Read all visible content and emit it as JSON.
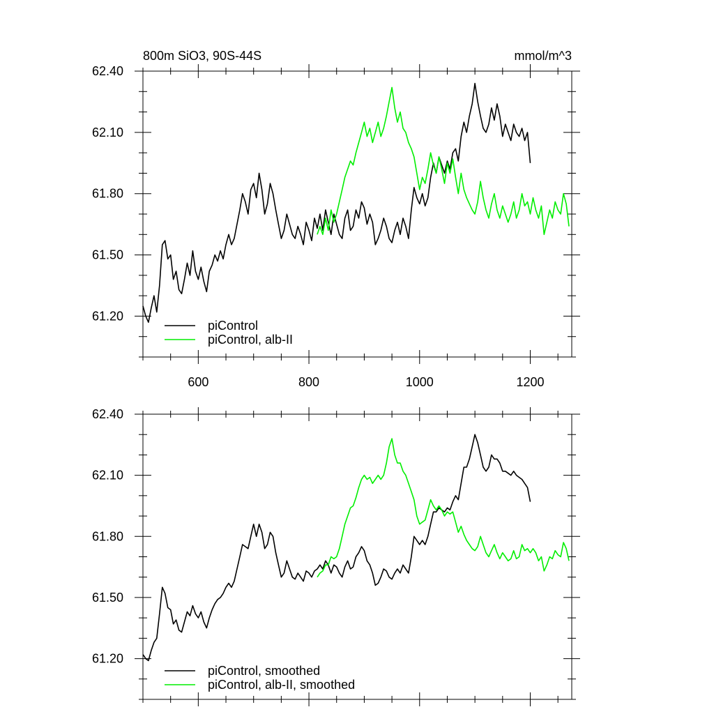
{
  "header": {
    "title": "800m SiO3, 90S-44S",
    "units": "mmol/m^3"
  },
  "colors": {
    "black": "#000000",
    "green": "#00ee00"
  },
  "chart_data": [
    {
      "type": "line",
      "title": "800m SiO3, 90S-44S",
      "unit_label": "mmol/m^3",
      "xlabel": "",
      "ylabel": "",
      "xlim": [
        500,
        1275
      ],
      "ylim": [
        61.0,
        62.4
      ],
      "xticks": [
        600,
        800,
        1000,
        1200
      ],
      "xticklabels": [
        "600",
        "800",
        "1000",
        "1200"
      ],
      "yticks": [
        61.2,
        61.5,
        61.8,
        62.1,
        62.4
      ],
      "yticklabels": [
        "61.20",
        "61.50",
        "61.80",
        "62.10",
        "62.40"
      ],
      "legend_location": "bottom-left",
      "series": [
        {
          "name": "piControl",
          "color": "#000000",
          "x": [
            500,
            505,
            510,
            515,
            520,
            525,
            530,
            535,
            540,
            545,
            550,
            555,
            560,
            565,
            570,
            575,
            580,
            585,
            590,
            595,
            600,
            605,
            610,
            615,
            620,
            625,
            630,
            635,
            640,
            645,
            650,
            655,
            660,
            665,
            670,
            675,
            680,
            685,
            690,
            695,
            700,
            705,
            710,
            715,
            720,
            725,
            730,
            735,
            740,
            745,
            750,
            755,
            760,
            765,
            770,
            775,
            780,
            785,
            790,
            795,
            800,
            805,
            810,
            815,
            820,
            825,
            830,
            835,
            840,
            845,
            850,
            855,
            860,
            865,
            870,
            875,
            880,
            885,
            890,
            895,
            900,
            905,
            910,
            915,
            920,
            925,
            930,
            935,
            940,
            945,
            950,
            955,
            960,
            965,
            970,
            975,
            980,
            985,
            990,
            995,
            1000,
            1005,
            1010,
            1015,
            1020,
            1025,
            1030,
            1035,
            1040,
            1045,
            1050,
            1055,
            1060,
            1065,
            1070,
            1075,
            1080,
            1085,
            1090,
            1095,
            1100,
            1105,
            1110,
            1115,
            1120,
            1125,
            1130,
            1135,
            1140,
            1145,
            1150,
            1155,
            1160,
            1165,
            1170,
            1175,
            1180,
            1185,
            1190,
            1195,
            1200
          ],
          "values": [
            61.25,
            61.2,
            61.17,
            61.24,
            61.3,
            61.22,
            61.35,
            61.55,
            61.57,
            61.48,
            61.5,
            61.38,
            61.42,
            61.33,
            61.31,
            61.38,
            61.46,
            61.4,
            61.52,
            61.42,
            61.38,
            61.44,
            61.37,
            61.32,
            61.42,
            61.45,
            61.5,
            61.47,
            61.52,
            61.48,
            61.55,
            61.6,
            61.55,
            61.58,
            61.65,
            61.72,
            61.8,
            61.76,
            61.7,
            61.82,
            61.85,
            61.78,
            61.9,
            61.82,
            61.7,
            61.75,
            61.85,
            61.8,
            61.72,
            61.65,
            61.58,
            61.62,
            61.7,
            61.65,
            61.6,
            61.58,
            61.64,
            61.6,
            61.55,
            61.66,
            61.62,
            61.57,
            61.68,
            61.63,
            61.7,
            61.62,
            61.72,
            61.66,
            61.6,
            61.7,
            61.65,
            61.6,
            61.58,
            61.68,
            61.72,
            61.62,
            61.64,
            61.72,
            61.68,
            61.76,
            61.73,
            61.65,
            61.7,
            61.66,
            61.55,
            61.58,
            61.62,
            61.68,
            61.64,
            61.58,
            61.56,
            61.62,
            61.66,
            61.6,
            61.68,
            61.64,
            61.58,
            61.72,
            61.83,
            61.78,
            61.75,
            61.8,
            61.74,
            61.78,
            61.88,
            61.95,
            61.9,
            61.98,
            61.94,
            61.9,
            61.96,
            61.92,
            62.0,
            62.02,
            61.96,
            62.08,
            62.15,
            62.1,
            62.18,
            62.24,
            62.34,
            62.25,
            62.18,
            62.12,
            62.1,
            62.14,
            62.22,
            62.16,
            62.24,
            62.18,
            62.08,
            62.14,
            62.1,
            62.06,
            62.14,
            62.1,
            62.08,
            62.12,
            62.06,
            62.1,
            61.95
          ]
        },
        {
          "name": "piControl, alb-II",
          "color": "#00ee00",
          "x": [
            815,
            820,
            825,
            830,
            835,
            840,
            845,
            850,
            855,
            860,
            865,
            870,
            875,
            880,
            885,
            890,
            895,
            900,
            905,
            910,
            915,
            920,
            925,
            930,
            935,
            940,
            945,
            950,
            955,
            960,
            965,
            970,
            975,
            980,
            985,
            990,
            995,
            1000,
            1005,
            1010,
            1015,
            1020,
            1025,
            1030,
            1035,
            1040,
            1045,
            1050,
            1055,
            1060,
            1065,
            1070,
            1075,
            1080,
            1085,
            1090,
            1095,
            1100,
            1105,
            1110,
            1115,
            1120,
            1125,
            1130,
            1135,
            1140,
            1145,
            1150,
            1155,
            1160,
            1165,
            1170,
            1175,
            1180,
            1185,
            1190,
            1195,
            1200,
            1205,
            1210,
            1215,
            1220,
            1225,
            1230,
            1235,
            1240,
            1245,
            1250,
            1255,
            1260,
            1265,
            1270
          ],
          "values": [
            61.6,
            61.64,
            61.6,
            61.68,
            61.62,
            61.72,
            61.66,
            61.7,
            61.76,
            61.82,
            61.88,
            61.92,
            61.96,
            61.94,
            62.0,
            62.05,
            62.1,
            62.15,
            62.08,
            62.12,
            62.05,
            62.1,
            62.15,
            62.08,
            62.12,
            62.18,
            62.25,
            62.32,
            62.22,
            62.15,
            62.2,
            62.12,
            62.1,
            62.05,
            62.02,
            61.98,
            61.9,
            61.82,
            61.88,
            61.85,
            61.92,
            62.0,
            61.94,
            61.9,
            61.98,
            61.92,
            61.85,
            61.95,
            61.9,
            61.97,
            61.88,
            61.8,
            61.9,
            61.82,
            61.78,
            61.75,
            61.72,
            61.7,
            61.76,
            61.86,
            61.78,
            61.72,
            61.68,
            61.75,
            61.8,
            61.72,
            61.68,
            61.74,
            61.7,
            61.66,
            61.7,
            61.76,
            61.68,
            61.72,
            61.8,
            61.74,
            61.76,
            61.7,
            61.78,
            61.72,
            61.68,
            61.74,
            61.6,
            61.66,
            61.72,
            61.68,
            61.76,
            61.72,
            61.7,
            61.8,
            61.75,
            61.64
          ]
        }
      ]
    },
    {
      "type": "line",
      "title": "",
      "xlabel": "",
      "ylabel": "",
      "xlim": [
        500,
        1275
      ],
      "ylim": [
        61.0,
        62.4
      ],
      "xticks": [
        600,
        800,
        1000,
        1200
      ],
      "xticklabels": [],
      "yticks": [
        61.2,
        61.5,
        61.8,
        62.1,
        62.4
      ],
      "yticklabels": [
        "61.20",
        "61.50",
        "61.80",
        "62.10",
        "62.40"
      ],
      "legend_location": "bottom-left",
      "series": [
        {
          "name": "piControl, smoothed",
          "color": "#000000",
          "x": [
            500,
            505,
            510,
            515,
            520,
            525,
            530,
            535,
            540,
            545,
            550,
            555,
            560,
            565,
            570,
            575,
            580,
            585,
            590,
            595,
            600,
            605,
            610,
            615,
            620,
            625,
            630,
            635,
            640,
            645,
            650,
            655,
            660,
            665,
            670,
            675,
            680,
            685,
            690,
            695,
            700,
            705,
            710,
            715,
            720,
            725,
            730,
            735,
            740,
            745,
            750,
            755,
            760,
            765,
            770,
            775,
            780,
            785,
            790,
            795,
            800,
            805,
            810,
            815,
            820,
            825,
            830,
            835,
            840,
            845,
            850,
            855,
            860,
            865,
            870,
            875,
            880,
            885,
            890,
            895,
            900,
            905,
            910,
            915,
            920,
            925,
            930,
            935,
            940,
            945,
            950,
            955,
            960,
            965,
            970,
            975,
            980,
            985,
            990,
            995,
            1000,
            1005,
            1010,
            1015,
            1020,
            1025,
            1030,
            1035,
            1040,
            1045,
            1050,
            1055,
            1060,
            1065,
            1070,
            1075,
            1080,
            1085,
            1090,
            1095,
            1100,
            1105,
            1110,
            1115,
            1120,
            1125,
            1130,
            1135,
            1140,
            1145,
            1150,
            1155,
            1160,
            1165,
            1170,
            1175,
            1180,
            1185,
            1190,
            1195,
            1200
          ],
          "values": [
            61.22,
            61.2,
            61.19,
            61.24,
            61.28,
            61.3,
            61.42,
            61.55,
            61.52,
            61.45,
            61.44,
            61.37,
            61.39,
            61.34,
            61.33,
            61.38,
            61.43,
            61.41,
            61.46,
            61.42,
            61.4,
            61.43,
            61.38,
            61.35,
            61.4,
            61.44,
            61.47,
            61.49,
            61.5,
            61.52,
            61.55,
            61.57,
            61.55,
            61.58,
            61.64,
            61.7,
            61.76,
            61.75,
            61.74,
            61.8,
            61.86,
            61.8,
            61.86,
            61.82,
            61.74,
            61.76,
            61.82,
            61.8,
            61.72,
            61.66,
            61.6,
            61.62,
            61.68,
            61.64,
            61.6,
            61.59,
            61.62,
            61.6,
            61.58,
            61.63,
            61.62,
            61.6,
            61.63,
            61.64,
            61.66,
            61.64,
            61.68,
            61.66,
            61.62,
            61.66,
            61.65,
            61.62,
            61.6,
            61.65,
            61.68,
            61.64,
            61.65,
            61.7,
            61.72,
            61.75,
            61.73,
            61.68,
            61.66,
            61.62,
            61.56,
            61.57,
            61.6,
            61.64,
            61.63,
            61.6,
            61.59,
            61.62,
            61.64,
            61.62,
            61.66,
            61.64,
            61.62,
            61.7,
            61.8,
            61.78,
            61.76,
            61.78,
            61.76,
            61.8,
            61.86,
            61.92,
            61.92,
            61.94,
            61.93,
            61.92,
            61.94,
            61.93,
            61.97,
            62.0,
            61.98,
            62.06,
            62.14,
            62.14,
            62.18,
            62.24,
            62.3,
            62.26,
            62.2,
            62.14,
            62.12,
            62.14,
            62.2,
            62.18,
            62.18,
            62.16,
            62.12,
            62.12,
            62.11,
            62.1,
            62.12,
            62.1,
            62.09,
            62.08,
            62.06,
            62.04,
            61.97
          ]
        },
        {
          "name": "piControl, alb-II, smoothed",
          "color": "#00ee00",
          "x": [
            815,
            820,
            825,
            830,
            835,
            840,
            845,
            850,
            855,
            860,
            865,
            870,
            875,
            880,
            885,
            890,
            895,
            900,
            905,
            910,
            915,
            920,
            925,
            930,
            935,
            940,
            945,
            950,
            955,
            960,
            965,
            970,
            975,
            980,
            985,
            990,
            995,
            1000,
            1005,
            1010,
            1015,
            1020,
            1025,
            1030,
            1035,
            1040,
            1045,
            1050,
            1055,
            1060,
            1065,
            1070,
            1075,
            1080,
            1085,
            1090,
            1095,
            1100,
            1105,
            1110,
            1115,
            1120,
            1125,
            1130,
            1135,
            1140,
            1145,
            1150,
            1155,
            1160,
            1165,
            1170,
            1175,
            1180,
            1185,
            1190,
            1195,
            1200,
            1205,
            1210,
            1215,
            1220,
            1225,
            1230,
            1235,
            1240,
            1245,
            1250,
            1255,
            1260,
            1265,
            1270
          ],
          "values": [
            61.6,
            61.62,
            61.63,
            61.66,
            61.66,
            61.7,
            61.69,
            61.7,
            61.74,
            61.8,
            61.86,
            61.9,
            61.94,
            61.95,
            61.99,
            62.04,
            62.08,
            62.1,
            62.08,
            62.09,
            62.06,
            62.08,
            62.1,
            62.08,
            62.1,
            62.16,
            62.24,
            62.28,
            62.2,
            62.16,
            62.16,
            62.12,
            62.1,
            62.06,
            62.02,
            61.98,
            61.9,
            61.86,
            61.87,
            61.88,
            61.93,
            61.98,
            61.95,
            61.93,
            61.95,
            61.93,
            61.9,
            61.92,
            61.91,
            61.92,
            61.87,
            61.82,
            61.85,
            61.81,
            61.78,
            61.76,
            61.74,
            61.73,
            61.75,
            61.8,
            61.76,
            61.72,
            61.7,
            61.73,
            61.76,
            61.72,
            61.69,
            61.72,
            61.7,
            61.68,
            61.69,
            61.73,
            61.69,
            61.7,
            61.76,
            61.73,
            61.74,
            61.72,
            61.74,
            61.72,
            61.68,
            61.7,
            61.63,
            61.66,
            61.7,
            61.69,
            61.73,
            61.71,
            61.7,
            61.77,
            61.74,
            61.68
          ]
        }
      ]
    }
  ]
}
